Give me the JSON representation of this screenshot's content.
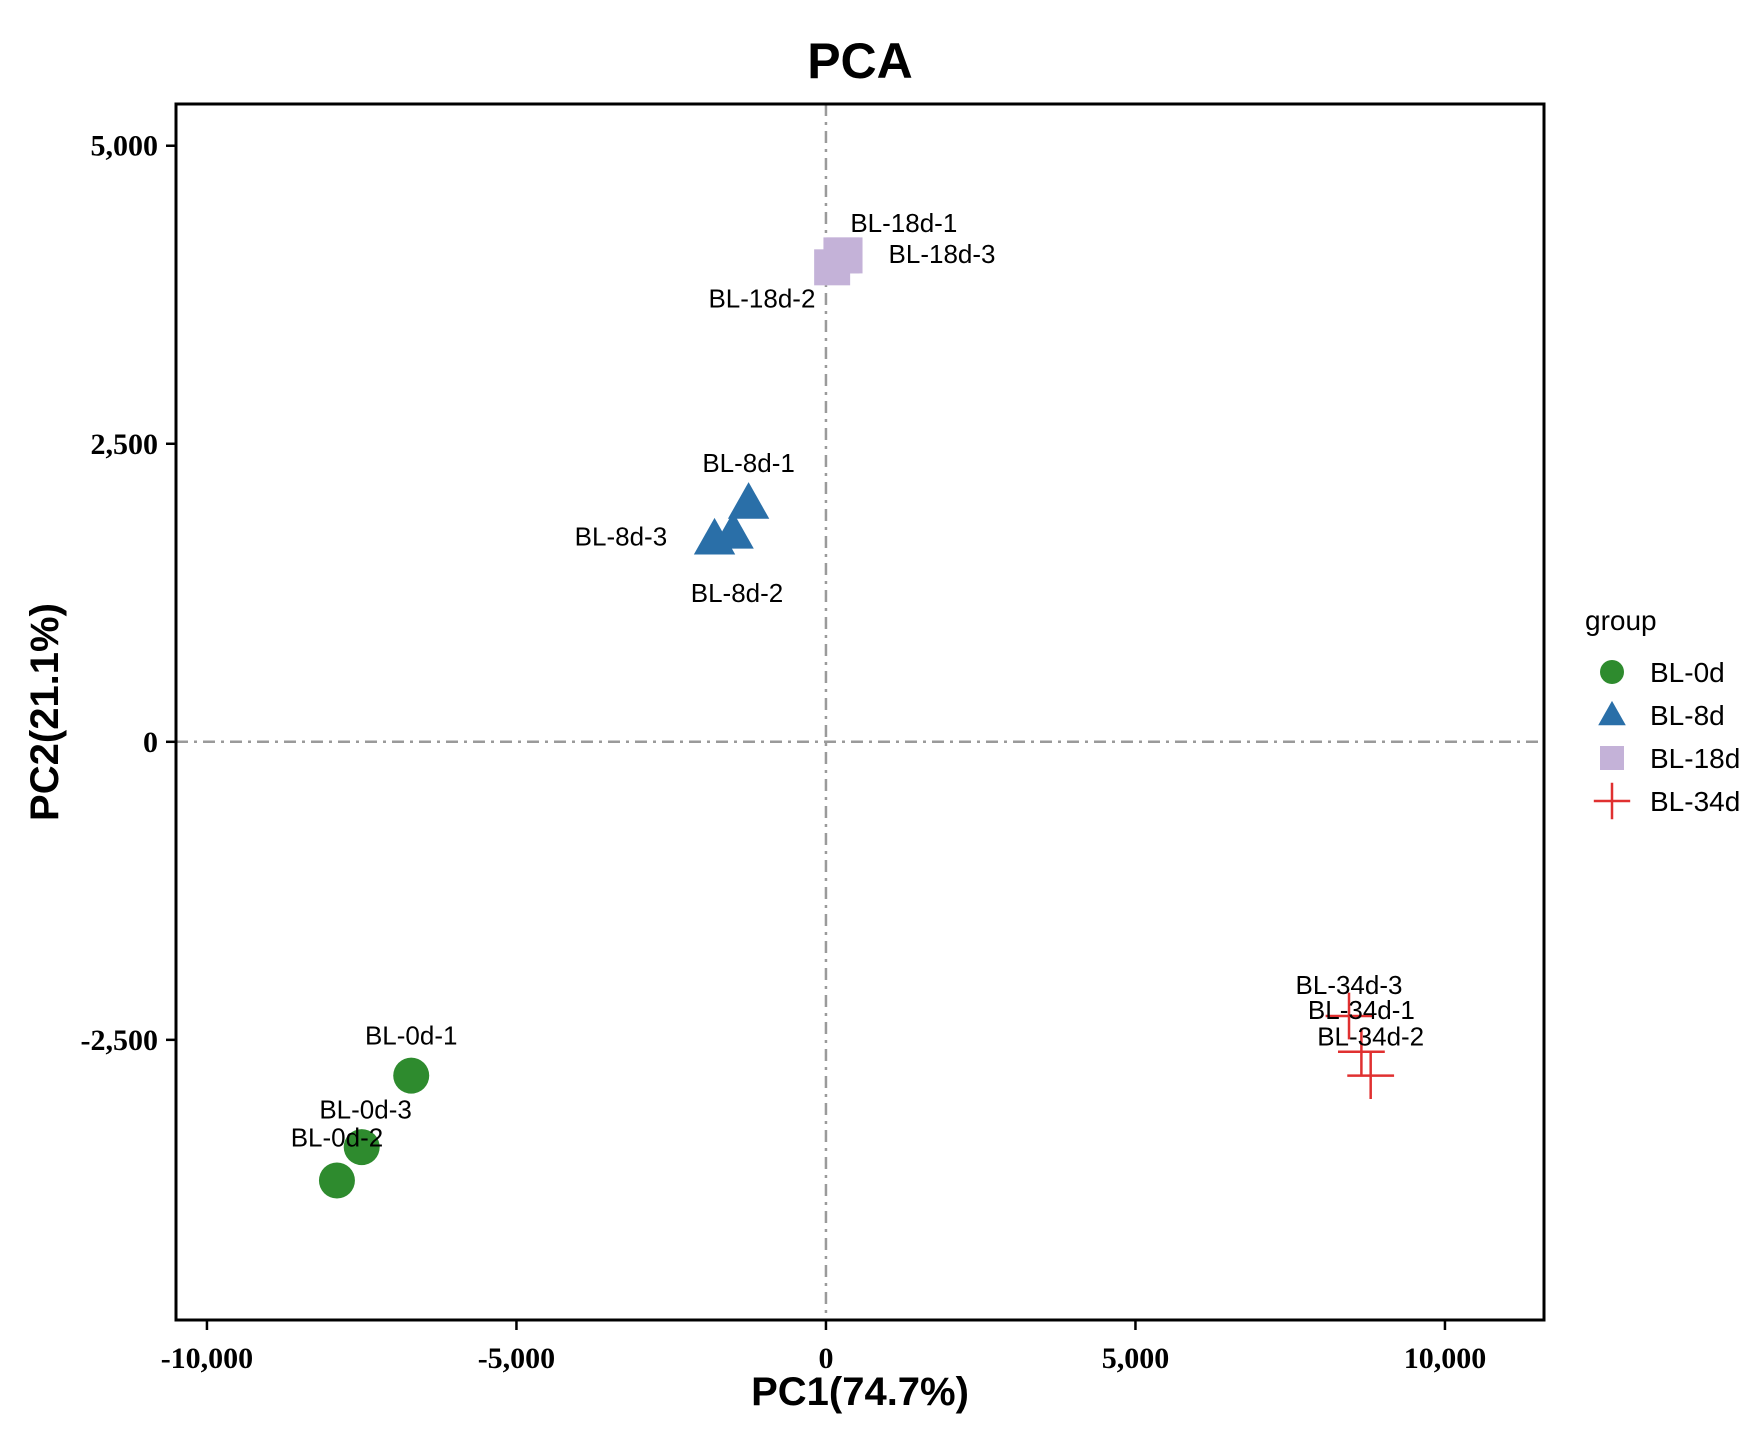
{
  "chart_data": {
    "type": "scatter",
    "title": "PCA",
    "xlabel": "PC1(74.7%)",
    "ylabel": "PC2(21.1%)",
    "xlim": [
      -10500,
      11600
    ],
    "ylim": [
      -4850,
      5350
    ],
    "xticks": [
      -10000,
      -5000,
      0,
      5000,
      10000
    ],
    "xtick_labels": [
      "-10,000",
      "-5,000",
      "0",
      "5,000",
      "10,000"
    ],
    "yticks": [
      -2500,
      0,
      2500,
      5000
    ],
    "ytick_labels": [
      "-2,500",
      "0",
      "2,500",
      "5,000"
    ],
    "reference_lines": {
      "x": 0,
      "y": 0
    },
    "legend": {
      "title": "group",
      "position": "right",
      "entries": [
        {
          "label": "BL-0d",
          "shape": "circle",
          "color": "#2e8b2e"
        },
        {
          "label": "BL-8d",
          "shape": "triangle",
          "color": "#2a6fa8"
        },
        {
          "label": "BL-18d",
          "shape": "square",
          "color": "#c4b2d8"
        },
        {
          "label": "BL-34d",
          "shape": "plus",
          "color": "#e03030"
        }
      ]
    },
    "series": [
      {
        "name": "BL-0d",
        "shape": "circle",
        "color": "#2e8b2e",
        "points": [
          {
            "label": "BL-0d-1",
            "x": -6700,
            "y": -2800,
            "label_dx": 0,
            "label_dy": 1.55
          },
          {
            "label": "BL-0d-3",
            "x": -7500,
            "y": -3400,
            "label_dx": 0.1,
            "label_dy": 1.45
          },
          {
            "label": "BL-0d-2",
            "x": -7900,
            "y": -3680,
            "label_dx": 0,
            "label_dy": 1.65
          }
        ]
      },
      {
        "name": "BL-8d",
        "shape": "triangle",
        "color": "#2a6fa8",
        "points": [
          {
            "label": "BL-8d-1",
            "x": -1250,
            "y": 2000,
            "label_dx": 0,
            "label_dy": 1.55
          },
          {
            "label": "BL-8d-3",
            "x": -1800,
            "y": 1700,
            "label_dx": -2.4,
            "label_dy": 0.1
          },
          {
            "label": "BL-8d-2",
            "x": -1500,
            "y": 1750,
            "label_dx": 0.1,
            "label_dy": -2.3
          }
        ]
      },
      {
        "name": "BL-18d",
        "shape": "square",
        "color": "#c4b2d8",
        "points": [
          {
            "label": "BL-18d-1",
            "x": 250,
            "y": 4080,
            "label_dx": 1.6,
            "label_dy": 1.25
          },
          {
            "label": "BL-18d-3",
            "x": 300,
            "y": 4080,
            "label_dx": 2.5,
            "label_dy": 0.05
          },
          {
            "label": "BL-18d-2",
            "x": 100,
            "y": 3980,
            "label_dx": -1.8,
            "label_dy": -1.2
          }
        ]
      },
      {
        "name": "BL-34d",
        "shape": "plus",
        "color": "#e03030",
        "points": [
          {
            "label": "BL-34d-3",
            "x": 8450,
            "y": -2300,
            "label_dx": 0,
            "label_dy": 1.2
          },
          {
            "label": "BL-34d-1",
            "x": 8650,
            "y": -2600,
            "label_dx": 0,
            "label_dy": 1.6
          },
          {
            "label": "BL-34d-2",
            "x": 8800,
            "y": -2800,
            "label_dx": 0,
            "label_dy": 1.5
          }
        ]
      }
    ]
  }
}
